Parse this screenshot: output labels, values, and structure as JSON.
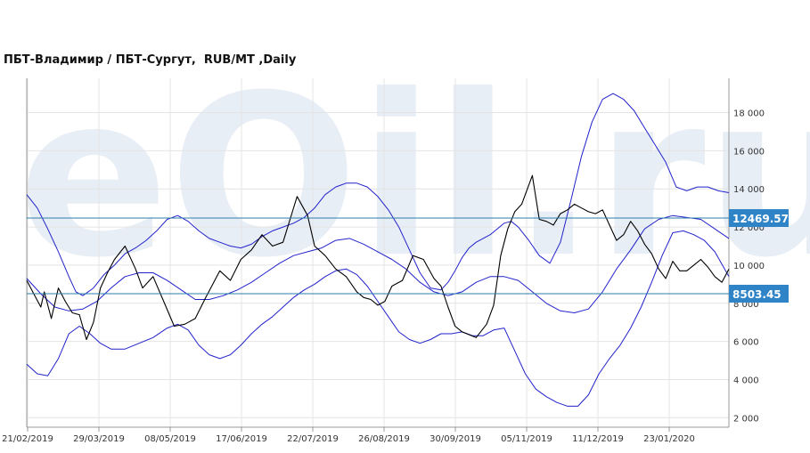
{
  "chart_data": {
    "type": "line",
    "title": "ПБТ-Владимир / ПБТ-Сургут,  RUB/MT ,Daily",
    "watermark": "eOil.ru",
    "x_ticks": [
      "21/02/2019",
      "29/03/2019",
      "08/05/2019",
      "17/06/2019",
      "22/07/2019",
      "26/08/2019",
      "30/09/2019",
      "05/11/2019",
      "11/12/2019",
      "23/01/2020"
    ],
    "y_ticks": [
      "2 000",
      "4 000",
      "6 000",
      "8 000",
      "10 000",
      "12 000",
      "14 000",
      "16 000",
      "18 000"
    ],
    "ylim": [
      1500,
      19800
    ],
    "xlim": [
      0,
      1000
    ],
    "grid": true,
    "hlines": [
      {
        "value": 12469.57,
        "label": "12469.57"
      },
      {
        "value": 8503.45,
        "label": "8503.45"
      }
    ],
    "series": [
      {
        "role": "price",
        "color": "#000000",
        "x": [
          0,
          10,
          20,
          25,
          35,
          45,
          55,
          65,
          75,
          85,
          95,
          105,
          115,
          125,
          140,
          155,
          165,
          180,
          195,
          210,
          225,
          240,
          255,
          265,
          275,
          290,
          305,
          320,
          335,
          350,
          365,
          375,
          385,
          400,
          410,
          425,
          440,
          455,
          470,
          480,
          490,
          500,
          510,
          520,
          535,
          550,
          565,
          580,
          590,
          600,
          610,
          620,
          640,
          655,
          665,
          675,
          685,
          695,
          705,
          720,
          730,
          740,
          750,
          760,
          770,
          780,
          790,
          800,
          810,
          820,
          830,
          840,
          850,
          860,
          870,
          880,
          890,
          900,
          910,
          920,
          930,
          940,
          950,
          960,
          970,
          980,
          990,
          1000
        ],
        "y": [
          9200,
          8500,
          7800,
          8600,
          7200,
          8800,
          8100,
          7500,
          7400,
          6100,
          7000,
          8800,
          9600,
          10300,
          11000,
          9800,
          8800,
          9400,
          8100,
          6800,
          6900,
          7200,
          8300,
          9000,
          9700,
          9200,
          10300,
          10800,
          11600,
          11000,
          11200,
          12400,
          13600,
          12600,
          11000,
          10500,
          9800,
          9400,
          8600,
          8300,
          8200,
          7900,
          8100,
          8900,
          9200,
          10500,
          10300,
          9300,
          8900,
          7800,
          6800,
          6500,
          6200,
          6900,
          7900,
          10500,
          11900,
          12800,
          13200,
          14700,
          12400,
          12300,
          12100,
          12700,
          12900,
          13200,
          13000,
          12800,
          12700,
          12900,
          12100,
          11300,
          11600,
          12300,
          11800,
          11100,
          10600,
          9800,
          9300,
          10200,
          9700,
          9700,
          10000,
          10300,
          9900,
          9400,
          9100,
          9800
        ]
      },
      {
        "role": "upper band",
        "color": "#2222cc",
        "x": [
          0,
          15,
          30,
          45,
          60,
          70,
          80,
          95,
          110,
          125,
          140,
          155,
          170,
          185,
          200,
          215,
          230,
          245,
          260,
          275,
          290,
          305,
          320,
          335,
          350,
          365,
          380,
          395,
          410,
          425,
          440,
          455,
          470,
          485,
          500,
          515,
          530,
          545,
          560,
          575,
          590,
          600,
          610,
          620,
          630,
          640,
          650,
          660,
          670,
          680,
          690,
          700,
          715,
          730,
          745,
          760,
          775,
          790,
          805,
          820,
          835,
          850,
          865,
          880,
          895,
          910,
          925,
          940,
          955,
          970,
          985,
          1000
        ],
        "y": [
          13700,
          13000,
          11900,
          10700,
          9400,
          8600,
          8400,
          8800,
          9500,
          10000,
          10600,
          10900,
          11300,
          11800,
          12400,
          12600,
          12300,
          11800,
          11400,
          11200,
          11000,
          10900,
          11100,
          11500,
          11800,
          12000,
          12200,
          12500,
          13000,
          13700,
          14100,
          14300,
          14300,
          14100,
          13600,
          12900,
          12000,
          10800,
          9600,
          8800,
          8700,
          9100,
          9700,
          10400,
          10900,
          11200,
          11400,
          11600,
          11900,
          12200,
          12300,
          12000,
          11300,
          10500,
          10100,
          11200,
          13400,
          15700,
          17500,
          18700,
          19000,
          18700,
          18100,
          17200,
          16300,
          15400,
          14100,
          13900,
          14100,
          14100,
          13900,
          13800
        ]
      },
      {
        "role": "middle band",
        "color": "#2222cc",
        "x": [
          0,
          20,
          40,
          60,
          80,
          100,
          120,
          140,
          160,
          180,
          200,
          220,
          240,
          260,
          280,
          300,
          320,
          340,
          360,
          380,
          400,
          420,
          440,
          460,
          480,
          500,
          520,
          540,
          560,
          580,
          600,
          620,
          640,
          660,
          680,
          700,
          720,
          740,
          760,
          780,
          800,
          820,
          840,
          860,
          880,
          900,
          920,
          940,
          960,
          980,
          1000
        ],
        "y": [
          9300,
          8500,
          7800,
          7600,
          7700,
          8100,
          8800,
          9400,
          9600,
          9600,
          9200,
          8700,
          8200,
          8200,
          8400,
          8700,
          9100,
          9600,
          10100,
          10500,
          10700,
          10900,
          11300,
          11400,
          11100,
          10700,
          10300,
          9800,
          9100,
          8600,
          8400,
          8600,
          9100,
          9400,
          9400,
          9200,
          8600,
          8000,
          7600,
          7500,
          7700,
          8600,
          9800,
          10800,
          11900,
          12400,
          12600,
          12500,
          12400,
          11900,
          11400
        ]
      },
      {
        "role": "lower band",
        "color": "#2222cc",
        "x": [
          0,
          15,
          30,
          45,
          60,
          75,
          90,
          105,
          120,
          140,
          160,
          180,
          200,
          215,
          230,
          245,
          260,
          275,
          290,
          305,
          320,
          335,
          350,
          365,
          380,
          395,
          410,
          425,
          440,
          455,
          470,
          485,
          500,
          515,
          530,
          545,
          560,
          575,
          590,
          605,
          620,
          635,
          650,
          665,
          680,
          695,
          710,
          725,
          740,
          755,
          770,
          785,
          800,
          815,
          830,
          845,
          860,
          875,
          890,
          905,
          920,
          935,
          950,
          965,
          980,
          1000
        ],
        "y": [
          4800,
          4300,
          4200,
          5100,
          6400,
          6800,
          6400,
          5900,
          5600,
          5600,
          5900,
          6200,
          6700,
          6900,
          6600,
          5800,
          5300,
          5100,
          5300,
          5800,
          6400,
          6900,
          7300,
          7800,
          8300,
          8700,
          9000,
          9400,
          9700,
          9800,
          9500,
          8900,
          8100,
          7300,
          6500,
          6100,
          5900,
          6100,
          6400,
          6400,
          6500,
          6300,
          6300,
          6600,
          6700,
          5500,
          4300,
          3500,
          3100,
          2800,
          2600,
          2600,
          3200,
          4300,
          5100,
          5800,
          6700,
          7800,
          9100,
          10500,
          11700,
          11800,
          11600,
          11300,
          10700,
          9400
        ]
      }
    ]
  }
}
